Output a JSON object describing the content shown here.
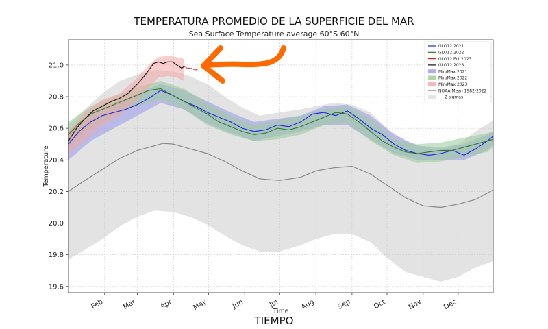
{
  "header": {
    "title": "TEMPERATURA PROMEDIO DE LA SUPERFICIE DEL MAR",
    "subtitle": "Sea Surface Temperature average 60°S 60°N"
  },
  "footer": {
    "caption": "TIEMPO"
  },
  "annotation": {
    "arrow_color": "#ff6a00",
    "arrow_icon": "curved-arrow-icon"
  },
  "chart_data": {
    "type": "line",
    "title": "",
    "xlabel": "Time",
    "ylabel": "Temperature",
    "x_tick_labels": [
      "Feb",
      "Mar",
      "Apr",
      "May",
      "Jun",
      "Jul",
      "Aug",
      "Sep",
      "Oct",
      "Nov",
      "Dec"
    ],
    "x_tick_days": [
      32,
      60,
      91,
      121,
      152,
      182,
      213,
      244,
      274,
      305,
      335
    ],
    "xlim": [
      1,
      365
    ],
    "ylim": [
      19.56,
      21.16
    ],
    "y_ticks": [
      19.6,
      19.8,
      20.0,
      20.2,
      20.4,
      20.6,
      20.8,
      21.0
    ],
    "y_tick_labels": [
      "19.6",
      "19.8",
      "20.0",
      "20.2",
      "20.4",
      "20.6",
      "20.8",
      "21.0"
    ],
    "grid": true,
    "legend_position": "top-right",
    "legend": [
      {
        "label": "GLO12 2021",
        "kind": "line",
        "color": "#1f1fe6"
      },
      {
        "label": "GLO12 2022",
        "kind": "line",
        "color": "#2a7a2a"
      },
      {
        "label": "GLO12 Fct 2023",
        "kind": "line",
        "color": "#e02020"
      },
      {
        "label": "GLO12 2023",
        "kind": "line",
        "color": "#111111"
      },
      {
        "label": "Min/Max 2021",
        "kind": "patch",
        "color": "#9999ee"
      },
      {
        "label": "Min/Max 2022",
        "kind": "patch",
        "color": "#99cc99"
      },
      {
        "label": "Min/Max 2023",
        "kind": "patch",
        "color": "#f3a6a6"
      },
      {
        "label": "NOAA Mean 1982-2022",
        "kind": "line",
        "color": "#888888"
      },
      {
        "label": "+- 2 sigmas",
        "kind": "patch",
        "color": "#dddddd"
      }
    ],
    "series": [
      {
        "name": "NOAA Mean 1982-2022",
        "color": "#888888",
        "x": [
          1,
          15,
          30,
          45,
          60,
          75,
          82,
          91,
          105,
          120,
          135,
          150,
          165,
          182,
          200,
          213,
          228,
          244,
          260,
          274,
          290,
          305,
          320,
          335,
          350,
          365
        ],
        "values": [
          20.2,
          20.27,
          20.34,
          20.41,
          20.46,
          20.49,
          20.505,
          20.5,
          20.47,
          20.44,
          20.39,
          20.33,
          20.28,
          20.27,
          20.29,
          20.33,
          20.35,
          20.36,
          20.31,
          20.24,
          20.16,
          20.11,
          20.1,
          20.12,
          20.15,
          20.21
        ]
      },
      {
        "name": "+2 sigma",
        "color": "#dddddd",
        "x": [
          1,
          15,
          30,
          45,
          60,
          75,
          91,
          105,
          120,
          135,
          150,
          165,
          182,
          200,
          213,
          228,
          244,
          260,
          274,
          290,
          305,
          320,
          335,
          350,
          365
        ],
        "values": [
          20.62,
          20.72,
          20.82,
          20.9,
          20.94,
          20.97,
          20.96,
          20.93,
          20.88,
          20.8,
          20.73,
          20.68,
          20.7,
          20.72,
          20.74,
          20.76,
          20.75,
          20.7,
          20.6,
          20.52,
          20.48,
          20.46,
          20.5,
          20.58,
          20.65
        ]
      },
      {
        "name": "-2 sigma",
        "color": "#dddddd",
        "x": [
          1,
          15,
          30,
          45,
          60,
          75,
          91,
          105,
          120,
          135,
          150,
          165,
          182,
          200,
          213,
          228,
          244,
          260,
          274,
          290,
          305,
          320,
          335,
          350,
          365
        ],
        "values": [
          19.77,
          19.83,
          19.9,
          19.98,
          20.04,
          20.08,
          20.07,
          20.04,
          19.99,
          19.92,
          19.86,
          19.82,
          19.82,
          19.86,
          19.9,
          19.93,
          19.93,
          19.88,
          19.78,
          19.69,
          19.66,
          19.63,
          19.66,
          19.72,
          19.76
        ]
      },
      {
        "name": "GLO12 2021",
        "color": "#1f1fe6",
        "x": [
          1,
          10,
          20,
          30,
          40,
          50,
          60,
          70,
          80,
          90,
          100,
          110,
          120,
          130,
          140,
          150,
          160,
          170,
          180,
          190,
          200,
          210,
          220,
          230,
          240,
          250,
          260,
          270,
          280,
          290,
          300,
          310,
          320,
          330,
          340,
          350,
          360,
          365
        ],
        "values": [
          20.5,
          20.58,
          20.64,
          20.68,
          20.7,
          20.72,
          20.75,
          20.79,
          20.84,
          20.81,
          20.77,
          20.74,
          20.7,
          20.67,
          20.64,
          20.6,
          20.58,
          20.59,
          20.62,
          20.61,
          20.64,
          20.69,
          20.7,
          20.68,
          20.71,
          20.66,
          20.6,
          20.56,
          20.5,
          20.46,
          20.44,
          20.43,
          20.44,
          20.46,
          20.43,
          20.47,
          20.52,
          20.55
        ]
      },
      {
        "name": "GLO12 2022",
        "color": "#2a7a2a",
        "x": [
          1,
          10,
          20,
          30,
          40,
          50,
          60,
          70,
          80,
          90,
          100,
          110,
          120,
          130,
          140,
          150,
          160,
          170,
          180,
          190,
          200,
          210,
          220,
          230,
          240,
          250,
          260,
          270,
          280,
          290,
          300,
          310,
          320,
          330,
          340,
          350,
          360,
          365
        ],
        "values": [
          20.56,
          20.63,
          20.69,
          20.72,
          20.75,
          20.78,
          20.81,
          20.84,
          20.85,
          20.81,
          20.77,
          20.73,
          20.69,
          20.64,
          20.61,
          20.58,
          20.56,
          20.57,
          20.6,
          20.59,
          20.61,
          20.64,
          20.67,
          20.7,
          20.69,
          20.64,
          20.58,
          20.52,
          20.48,
          20.45,
          20.44,
          20.45,
          20.46,
          20.46,
          20.48,
          20.5,
          20.52,
          20.53
        ]
      },
      {
        "name": "GLO12 2023",
        "color": "#111111",
        "x": [
          1,
          8,
          15,
          22,
          30,
          38,
          45,
          52,
          60,
          66,
          70,
          74,
          78,
          82,
          86,
          90,
          94,
          98,
          100
        ],
        "values": [
          20.52,
          20.6,
          20.66,
          20.71,
          20.74,
          20.77,
          20.79,
          20.82,
          20.88,
          20.93,
          20.97,
          21.01,
          21.02,
          21.01,
          21.02,
          21.02,
          21.0,
          20.98,
          20.99
        ]
      },
      {
        "name": "GLO12 Fct 2023",
        "color": "#e02020",
        "x": [
          100,
          103,
          106,
          109,
          112
        ],
        "values": [
          20.99,
          20.98,
          20.98,
          20.97,
          20.97
        ]
      }
    ],
    "bands": [
      {
        "name": "Min/Max 2021",
        "color": "#9999ee",
        "x": [
          1,
          20,
          40,
          60,
          80,
          100,
          120,
          140,
          160,
          180,
          200,
          220,
          240,
          260,
          280,
          300,
          320,
          340,
          360,
          365
        ],
        "lower": [
          20.4,
          20.52,
          20.6,
          20.68,
          20.76,
          20.72,
          20.63,
          20.57,
          20.52,
          20.55,
          20.58,
          20.62,
          20.62,
          20.53,
          20.44,
          20.4,
          20.4,
          20.4,
          20.46,
          20.5
        ],
        "upper": [
          20.58,
          20.7,
          20.76,
          20.82,
          20.88,
          20.84,
          20.77,
          20.7,
          20.64,
          20.66,
          20.68,
          20.74,
          20.75,
          20.68,
          20.56,
          20.49,
          20.48,
          20.5,
          20.56,
          20.58
        ]
      },
      {
        "name": "Min/Max 2022",
        "color": "#99cc99",
        "x": [
          1,
          20,
          40,
          60,
          80,
          100,
          120,
          140,
          160,
          180,
          200,
          220,
          240,
          260,
          280,
          300,
          320,
          340,
          360,
          365
        ],
        "lower": [
          20.48,
          20.6,
          20.68,
          20.74,
          20.78,
          20.72,
          20.62,
          20.56,
          20.52,
          20.53,
          20.56,
          20.62,
          20.63,
          20.52,
          20.43,
          20.38,
          20.39,
          20.42,
          20.45,
          20.48
        ],
        "upper": [
          20.64,
          20.74,
          20.8,
          20.86,
          20.9,
          20.85,
          20.76,
          20.68,
          20.62,
          20.65,
          20.68,
          20.72,
          20.74,
          20.66,
          20.53,
          20.5,
          20.51,
          20.54,
          20.57,
          20.58
        ]
      },
      {
        "name": "Min/Max 2023",
        "color": "#f3a6a6",
        "x": [
          1,
          15,
          30,
          45,
          60,
          70,
          78,
          86,
          94,
          100
        ],
        "lower": [
          20.44,
          20.52,
          20.62,
          20.68,
          20.78,
          20.86,
          20.92,
          20.93,
          20.92,
          20.9
        ],
        "upper": [
          20.58,
          20.7,
          20.78,
          20.82,
          20.92,
          21.0,
          21.05,
          21.06,
          21.05,
          21.04
        ]
      }
    ]
  }
}
